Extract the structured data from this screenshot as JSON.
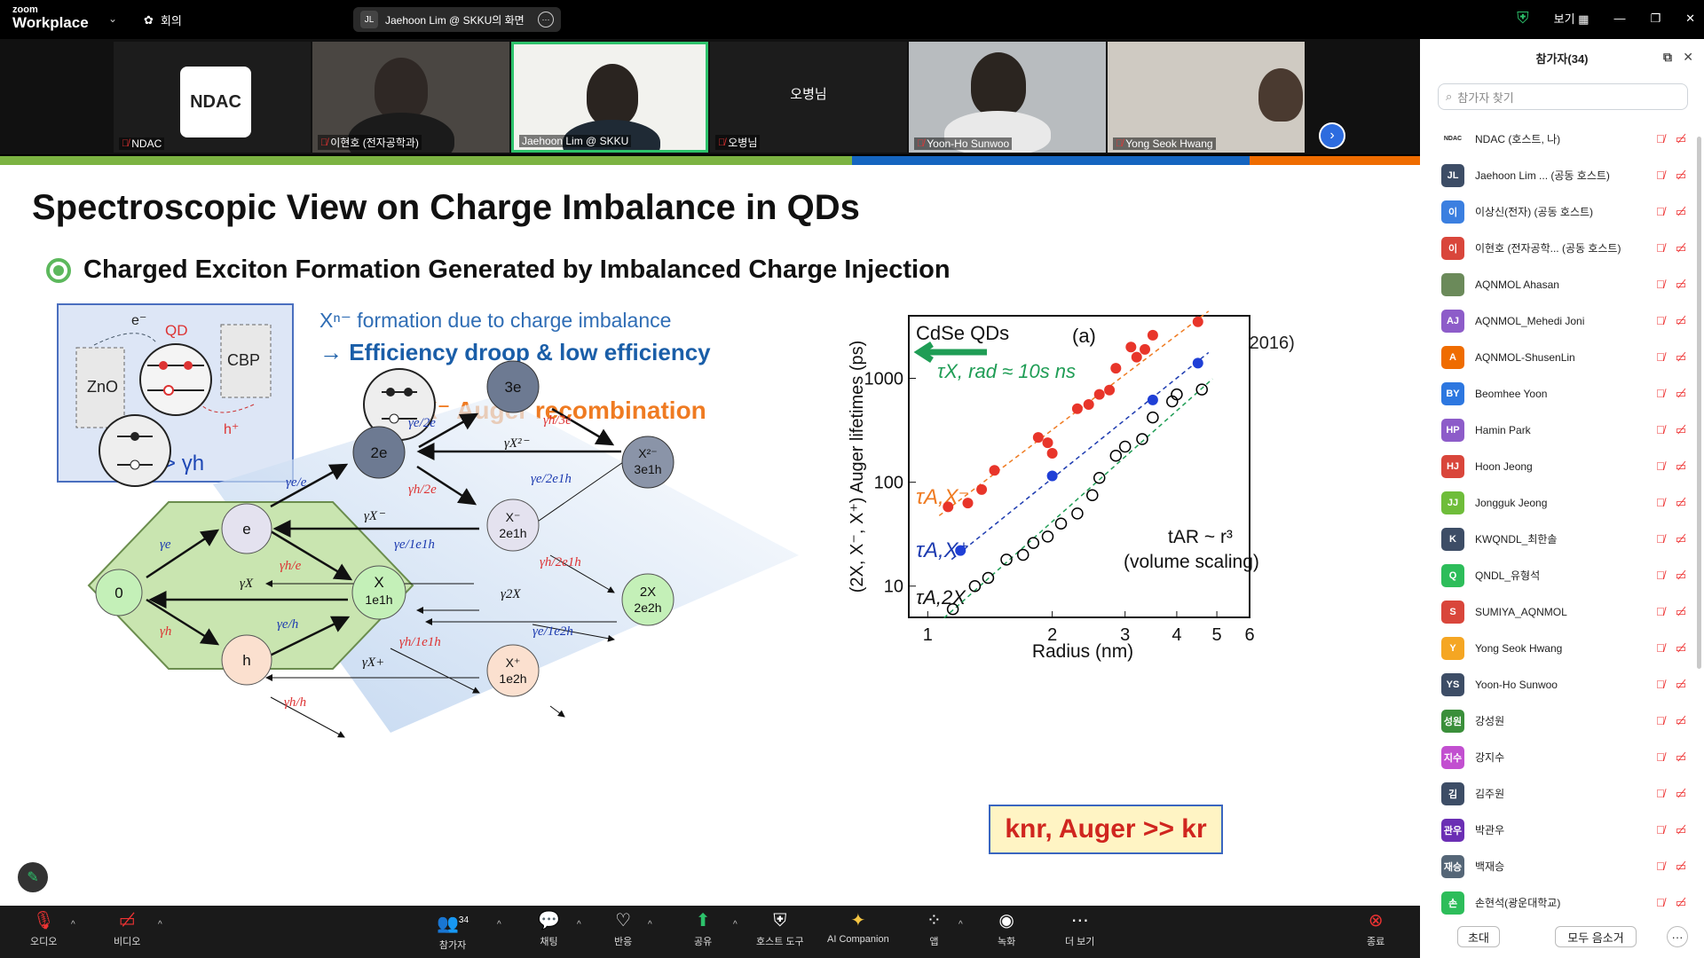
{
  "app": {
    "logo_top": "zoom",
    "logo_bottom": "Workplace",
    "meeting_label": "회의",
    "share_initials": "JL",
    "share_title": "Jaehoon Lim @ SKKU의 화면",
    "view_label": "보기",
    "colors": {
      "accent": "#2d6cdf",
      "green": "#2dc26b",
      "mute": "#e33333"
    }
  },
  "videos": [
    {
      "name": "NDAC",
      "muted": true
    },
    {
      "name": "이현호 (전자공학과)",
      "muted": true
    },
    {
      "name": "Jaehoon Lim @ SKKU",
      "muted": false
    },
    {
      "name": "오병님",
      "muted": true,
      "center": "오병님"
    },
    {
      "name": "Yoon-Ho Sunwoo",
      "muted": true
    },
    {
      "name": "Yong Seok Hwang",
      "muted": true
    }
  ],
  "slide": {
    "title": "Spectroscopic View on Charge Imbalance in QDs",
    "subtitle": "Charged Exciton Formation Generated by Imbalanced Charge Injection",
    "box": {
      "e": "e⁻",
      "qd": "QD",
      "zno": "ZnO",
      "cbp": "CBP",
      "h": "h⁺",
      "gamma": "γe > γh"
    },
    "xn_text": "Xⁿ⁻ formation due to charge imbalance",
    "eff_text": "→ Efficiency droop & low efficiency",
    "reference": "V. I. Klimov et al., Chem. Rev. (2016)",
    "auger": "X⁻ Auger recombination",
    "knr": "knr, Auger >> kr",
    "states": [
      "0",
      "e",
      "h",
      "X\n1e1h",
      "2e",
      "X⁻\n2e1h",
      "X⁺\n1e2h",
      "3e",
      "X²⁻\n3e1h",
      "2X\n2e2h"
    ],
    "rates": [
      "γe",
      "γh",
      "γX",
      "γe/e",
      "γh/e",
      "γe/h",
      "γh/h",
      "γX⁻",
      "γe/1e1h",
      "γh/1e1h",
      "γX+",
      "γe/2e",
      "γh/2e",
      "γX²⁻",
      "γe/2e1h",
      "γh/2e1h",
      "γ2X",
      "γe/1e2h",
      "γh/3e"
    ],
    "chart": {
      "label_top": "CdSe QDs",
      "panel": "(a)",
      "tau_rad": "τX, rad ≈ 10s ns",
      "xlabel": "Radius (nm)",
      "ylabel": "(2X, X⁻, X⁺) Auger lifetimes (ps)",
      "xticks": [
        "1",
        "2",
        "3",
        "4",
        "5",
        "6"
      ],
      "yticks": [
        "10",
        "100",
        "1000"
      ],
      "series_labels": [
        "τA,X⁻",
        "τA,X⁺",
        "τA,2X"
      ],
      "scaling1": "tAR ~ r³",
      "scaling2": "(volume scaling)"
    }
  },
  "chart_data": {
    "type": "scatter",
    "title": "CdSe QDs",
    "xlabel": "Radius (nm)",
    "ylabel": "(2X, X⁻, X⁺) Auger lifetimes (ps)",
    "xscale": "log",
    "yscale": "log",
    "xlim": [
      0.9,
      6
    ],
    "ylim": [
      5,
      4000
    ],
    "series": [
      {
        "name": "τA,X⁻",
        "color": "#e8352a",
        "x": [
          1.12,
          1.25,
          1.35,
          1.45,
          1.85,
          1.95,
          2.0,
          2.3,
          2.45,
          2.6,
          2.75,
          2.85,
          3.1,
          3.2,
          3.35,
          3.5,
          4.5
        ],
        "y": [
          58,
          63,
          85,
          130,
          270,
          240,
          190,
          510,
          560,
          700,
          770,
          1250,
          2000,
          1600,
          1900,
          2600,
          3500
        ]
      },
      {
        "name": "τA,X⁺",
        "color": "#1f3fd6",
        "x": [
          1.2,
          2.0,
          3.5,
          4.5
        ],
        "y": [
          22,
          115,
          620,
          1400
        ]
      },
      {
        "name": "τA,2X",
        "color": "#000000",
        "x": [
          1.15,
          1.3,
          1.4,
          1.55,
          1.7,
          1.8,
          1.95,
          2.1,
          2.3,
          2.5,
          2.6,
          2.85,
          3.0,
          3.3,
          3.5,
          3.9,
          4.0,
          4.6
        ],
        "y": [
          6,
          10,
          12,
          18,
          20,
          26,
          30,
          40,
          50,
          75,
          110,
          180,
          220,
          260,
          420,
          600,
          700,
          780
        ]
      }
    ]
  },
  "panel": {
    "title": "참가자(34)",
    "search_placeholder": "참가자 찾기",
    "participants": [
      {
        "initials": "NDAC",
        "name": "NDAC (호스트, 나)",
        "color": "#ffffff",
        "tc": "#222"
      },
      {
        "initials": "JL",
        "name": "Jaehoon Lim ... (공동 호스트)",
        "color": "#3d4d66"
      },
      {
        "initials": "이",
        "name": "이상신(전자) (공동 호스트)",
        "color": "#3b7fe0"
      },
      {
        "initials": "이",
        "name": "이현호 (전자공학... (공동 호스트)",
        "color": "#d9463b"
      },
      {
        "initials": "",
        "name": "AQNMOL  Ahasan",
        "color": "#6b8a5a"
      },
      {
        "initials": "AJ",
        "name": "AQNMOL_Mehedi Joni",
        "color": "#8d5cc9"
      },
      {
        "initials": "A",
        "name": "AQNMOL-ShusenLin",
        "color": "#ef6c00"
      },
      {
        "initials": "BY",
        "name": "Beomhee Yoon",
        "color": "#2d77e0"
      },
      {
        "initials": "HP",
        "name": "Hamin Park",
        "color": "#8d5cc9"
      },
      {
        "initials": "HJ",
        "name": "Hoon Jeong",
        "color": "#d9463b"
      },
      {
        "initials": "JJ",
        "name": "Jongguk Jeong",
        "color": "#6fbd3a"
      },
      {
        "initials": "K",
        "name": "KWQNDL_최한솔",
        "color": "#3d4d66"
      },
      {
        "initials": "Q",
        "name": "QNDL_유형석",
        "color": "#2dbd5a"
      },
      {
        "initials": "S",
        "name": "SUMIYA_AQNMOL",
        "color": "#d9463b"
      },
      {
        "initials": "Y",
        "name": "Yong Seok Hwang",
        "color": "#f5a623"
      },
      {
        "initials": "YS",
        "name": "Yoon-Ho Sunwoo",
        "color": "#3d4d66"
      },
      {
        "initials": "성원",
        "name": "강성원",
        "color": "#3a8f3a"
      },
      {
        "initials": "지수",
        "name": "강지수",
        "color": "#c24fd0"
      },
      {
        "initials": "김",
        "name": "김주원",
        "color": "#3d4d66"
      },
      {
        "initials": "관우",
        "name": "박관우",
        "color": "#6b2fb4"
      },
      {
        "initials": "재승",
        "name": "백재승",
        "color": "#556677"
      },
      {
        "initials": "손",
        "name": "손현석(광운대학교)",
        "color": "#2dbd5a"
      }
    ],
    "invite": "초대",
    "mute_all": "모두 음소거",
    "more": "···"
  },
  "toolbar": {
    "audio": "오디오",
    "video": "비디오",
    "participants": "참가자",
    "participants_count": "34",
    "chat": "채팅",
    "react": "반응",
    "share": "공유",
    "host_tools": "호스트 도구",
    "ai": "AI Companion",
    "apps": "앱",
    "record": "녹화",
    "more": "더 보기",
    "end": "종료"
  }
}
